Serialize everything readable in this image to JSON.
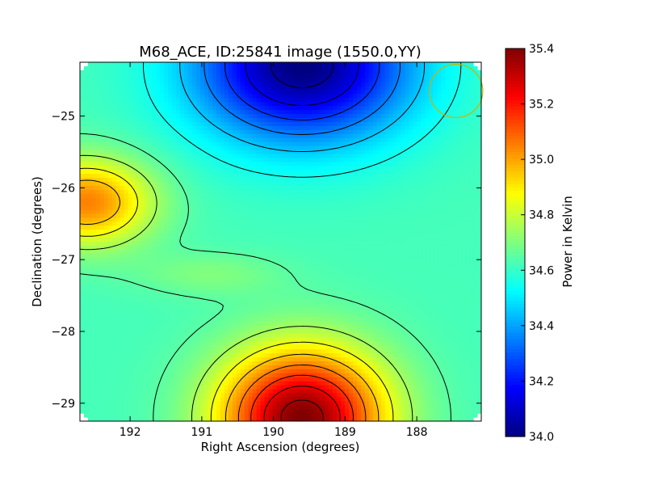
{
  "chart_data": {
    "type": "heatmap",
    "title": "M68_ACE, ID:25841 image (1550.0,YY)",
    "xlabel": "Right Ascension (degrees)",
    "ylabel": "Declination (degrees)",
    "xlim": [
      192.7,
      187.1
    ],
    "ylim": [
      -29.25,
      -24.25
    ],
    "x_ticks": [
      192,
      191,
      190,
      189,
      188
    ],
    "x_tick_labels": [
      "192",
      "191",
      "190",
      "189",
      "188"
    ],
    "y_ticks": [
      -25,
      -26,
      -27,
      -28,
      -29
    ],
    "y_tick_labels": [
      "−25",
      "−26",
      "−27",
      "−28",
      "−29"
    ],
    "colorbar": {
      "label": "Power in Kelvin",
      "range": [
        34.0,
        35.4
      ],
      "ticks": [
        34.0,
        34.2,
        34.4,
        34.6,
        34.8,
        35.0,
        35.2,
        35.4
      ],
      "tick_labels": [
        "34.0",
        "34.2",
        "34.4",
        "34.6",
        "34.8",
        "35.0",
        "35.2",
        "35.4"
      ],
      "colormap": "jet"
    },
    "features": [
      {
        "kind": "maximum",
        "ra": 189.6,
        "dec": -29.2,
        "value": 35.4
      },
      {
        "kind": "minimum",
        "ra": 189.6,
        "dec": -24.3,
        "value": 34.0
      },
      {
        "kind": "local-maximum",
        "ra": 192.6,
        "dec": -26.2,
        "value": 35.05
      },
      {
        "kind": "ridge",
        "ra": 190.9,
        "dec": -27.2,
        "value": 34.7
      }
    ],
    "beam_marker": {
      "ra": 187.45,
      "dec": -24.65,
      "color": "#c8b400"
    },
    "contours": true,
    "grid": false
  }
}
